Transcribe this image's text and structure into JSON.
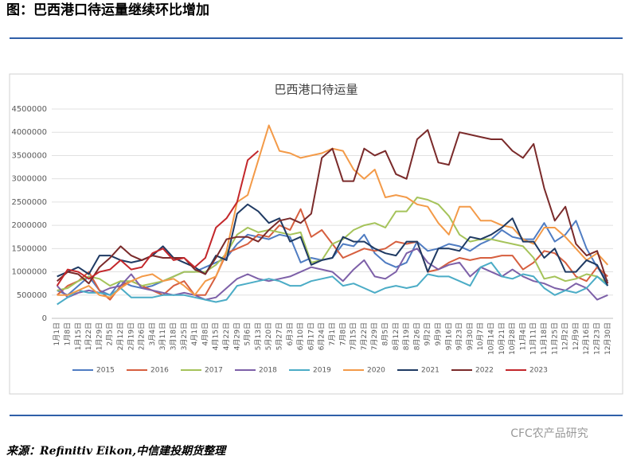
{
  "header": {
    "title": "图：巴西港口待运量继续环比增加"
  },
  "chart_data": {
    "type": "line",
    "title": "巴西港口待运量",
    "categories": [
      "1月1日",
      "1月8日",
      "1月15日",
      "1月22日",
      "1月29日",
      "2月5日",
      "2月12日",
      "2月19日",
      "2月26日",
      "3月4日",
      "3月11日",
      "3月18日",
      "3月25日",
      "4月1日",
      "4月8日",
      "4月15日",
      "4月22日",
      "4月29日",
      "5月6日",
      "5月13日",
      "5月20日",
      "5月27日",
      "6月3日",
      "6月10日",
      "6月17日",
      "6月24日",
      "7月1日",
      "7月8日",
      "7月15日",
      "7月22日",
      "7月29日",
      "8月5日",
      "8月12日",
      "8月19日",
      "8月26日",
      "9月2日",
      "9月9日",
      "9月16日",
      "9月23日",
      "9月30日",
      "10月7日",
      "10月14日",
      "10月21日",
      "10月28日",
      "11月4日",
      "11月11日",
      "11月18日",
      "11月25日",
      "12月2日",
      "12月9日",
      "12月16日",
      "12月23日",
      "12月30日"
    ],
    "ylim": [
      0,
      4500000
    ],
    "yticks": [
      0,
      500000,
      1000000,
      1500000,
      2000000,
      2500000,
      3000000,
      3500000,
      4000000,
      4500000
    ],
    "grid": true,
    "legend": "bottom",
    "series": [
      {
        "name": "2015",
        "color": "#4f7cc2",
        "values": [
          600000,
          500000,
          700000,
          900000,
          600000,
          500000,
          800000,
          700000,
          650000,
          700000,
          800000,
          900000,
          1000000,
          1000000,
          1100000,
          1200000,
          1300000,
          1600000,
          1800000,
          1750000,
          1700000,
          1800000,
          1750000,
          1200000,
          1300000,
          1250000,
          1300000,
          1600000,
          1550000,
          1800000,
          1400000,
          1200000,
          1100000,
          1200000,
          1650000,
          1450000,
          1500000,
          1600000,
          1550000,
          1450000,
          1600000,
          1700000,
          1900000,
          1750000,
          1700000,
          1700000,
          2050000,
          1650000,
          1800000,
          2100000,
          1500000,
          1100000,
          800000
        ]
      },
      {
        "name": "2016",
        "color": "#d65f3f",
        "values": [
          500000,
          700000,
          800000,
          1000000,
          600000,
          400000,
          700000,
          800000,
          700000,
          600000,
          500000,
          700000,
          800000,
          500000,
          500000,
          900000,
          1400000,
          1500000,
          1600000,
          1800000,
          1750000,
          2000000,
          1900000,
          2350000,
          1750000,
          1900000,
          1600000,
          1300000,
          1400000,
          1500000,
          1450000,
          1500000,
          1650000,
          1600000,
          1650000,
          1000000,
          1050000,
          1200000,
          1300000,
          1250000,
          1300000,
          1300000,
          1350000,
          1350000,
          1050000,
          1200000,
          1450000,
          1400000,
          1200000,
          900000,
          800000,
          1100000,
          900000
        ]
      },
      {
        "name": "2017",
        "color": "#a5c35a",
        "values": [
          600000,
          650000,
          800000,
          900000,
          850000,
          700000,
          800000,
          800000,
          700000,
          750000,
          800000,
          900000,
          1000000,
          1000000,
          1000000,
          1150000,
          1400000,
          1800000,
          1950000,
          1850000,
          1900000,
          1850000,
          1800000,
          1850000,
          1200000,
          1250000,
          1600000,
          1700000,
          1900000,
          2000000,
          2050000,
          1950000,
          2300000,
          2300000,
          2600000,
          2550000,
          2450000,
          2200000,
          1800000,
          1650000,
          1700000,
          1700000,
          1650000,
          1600000,
          1550000,
          1300000,
          850000,
          900000,
          800000,
          850000,
          950000,
          900000,
          750000
        ]
      },
      {
        "name": "2018",
        "color": "#7d60a8",
        "values": [
          700000,
          450000,
          550000,
          600000,
          550000,
          650000,
          700000,
          950000,
          650000,
          600000,
          550000,
          500000,
          550000,
          500000,
          400000,
          450000,
          650000,
          850000,
          950000,
          850000,
          800000,
          850000,
          900000,
          1000000,
          1100000,
          1050000,
          1000000,
          800000,
          1050000,
          1250000,
          900000,
          850000,
          1000000,
          1400000,
          1500000,
          1200000,
          1050000,
          1150000,
          1200000,
          900000,
          1100000,
          1000000,
          900000,
          1050000,
          900000,
          800000,
          750000,
          650000,
          600000,
          750000,
          650000,
          400000,
          500000
        ]
      },
      {
        "name": "2019",
        "color": "#4bacc6",
        "values": [
          300000,
          450000,
          600000,
          550000,
          550000,
          500000,
          650000,
          450000,
          450000,
          450000,
          500000,
          500000,
          500000,
          450000,
          400000,
          350000,
          400000,
          700000,
          750000,
          800000,
          850000,
          800000,
          700000,
          700000,
          800000,
          850000,
          900000,
          700000,
          750000,
          650000,
          550000,
          650000,
          700000,
          650000,
          700000,
          950000,
          900000,
          900000,
          800000,
          700000,
          1100000,
          1200000,
          900000,
          850000,
          950000,
          900000,
          650000,
          500000,
          600000,
          550000,
          650000,
          900000,
          700000
        ]
      },
      {
        "name": "2020",
        "color": "#f39a48",
        "values": [
          500000,
          500000,
          600000,
          700000,
          500000,
          450000,
          650000,
          800000,
          900000,
          950000,
          800000,
          850000,
          700000,
          500000,
          800000,
          900000,
          1450000,
          2500000,
          2650000,
          3400000,
          4150000,
          3600000,
          3550000,
          3450000,
          3500000,
          3550000,
          3650000,
          3600000,
          3200000,
          3000000,
          3200000,
          2600000,
          2650000,
          2600000,
          2450000,
          2400000,
          2050000,
          1800000,
          2400000,
          2400000,
          2100000,
          2100000,
          2000000,
          1950000,
          1700000,
          1600000,
          1950000,
          1950000,
          1750000,
          1500000,
          1250000,
          1400000,
          1150000
        ]
      },
      {
        "name": "2021",
        "color": "#1f3a63",
        "values": [
          900000,
          1000000,
          1100000,
          950000,
          1350000,
          1350000,
          1250000,
          1200000,
          1250000,
          1350000,
          1550000,
          1300000,
          1200000,
          1100000,
          950000,
          1350000,
          1250000,
          2250000,
          2450000,
          2300000,
          2050000,
          2150000,
          1650000,
          1750000,
          1150000,
          1250000,
          1300000,
          1750000,
          1650000,
          1650000,
          1500000,
          1400000,
          1350000,
          1650000,
          1650000,
          1000000,
          1500000,
          1500000,
          1450000,
          1750000,
          1700000,
          1800000,
          1950000,
          2150000,
          1650000,
          1650000,
          1300000,
          1500000,
          1000000,
          1000000,
          1250000,
          1150000,
          700000
        ]
      },
      {
        "name": "2022",
        "color": "#7a2a2a",
        "values": [
          800000,
          1000000,
          950000,
          750000,
          1100000,
          1300000,
          1550000,
          1350000,
          1250000,
          1350000,
          1300000,
          1300000,
          1300000,
          1050000,
          950000,
          1300000,
          1700000,
          1750000,
          1750000,
          1650000,
          1900000,
          2100000,
          2150000,
          2050000,
          2250000,
          3450000,
          3650000,
          2950000,
          2950000,
          3650000,
          3500000,
          3600000,
          3100000,
          3000000,
          3850000,
          4050000,
          3350000,
          3300000,
          4000000,
          3950000,
          3900000,
          3850000,
          3850000,
          3600000,
          3450000,
          3750000,
          2800000,
          2100000,
          2400000,
          1600000,
          1350000,
          1450000,
          750000
        ]
      },
      {
        "name": "2023",
        "color": "#c3272b",
        "values": [
          700000,
          1050000,
          1000000,
          850000,
          1000000,
          1050000,
          1250000,
          1050000,
          1100000,
          1400000,
          1500000,
          1250000,
          1300000,
          1100000,
          1300000,
          1950000,
          2150000,
          2500000,
          3400000,
          3600000,
          null,
          null,
          null,
          null,
          null,
          null,
          null,
          null,
          null,
          null,
          null,
          null,
          null,
          null,
          null,
          null,
          null,
          null,
          null,
          null,
          null,
          null,
          null,
          null,
          null,
          null,
          null,
          null,
          null,
          null,
          null,
          null,
          null
        ]
      }
    ]
  },
  "footer": {
    "source": "来源：Refinitiv Eikon,中信建投期货整理",
    "watermark": "CFC农产品研究"
  }
}
